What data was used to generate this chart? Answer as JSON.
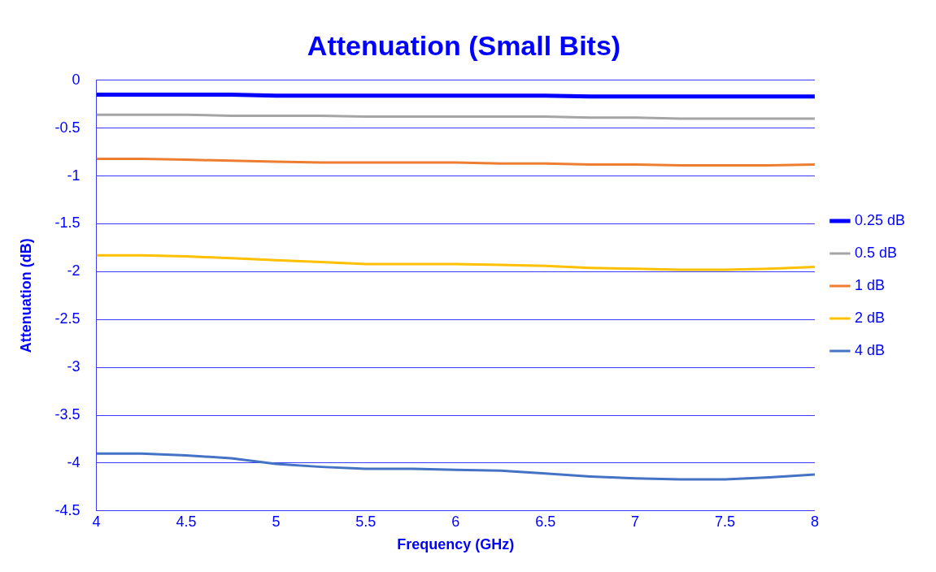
{
  "chart_data": {
    "type": "line",
    "title": "Attenuation (Small Bits)",
    "xlabel": "Frequency (GHz)",
    "ylabel": "Attenuation (dB)",
    "x": [
      4,
      4.25,
      4.5,
      4.75,
      5,
      5.25,
      5.5,
      5.75,
      6,
      6.25,
      6.5,
      6.75,
      7,
      7.25,
      7.5,
      7.75,
      8
    ],
    "series": [
      {
        "name": "0.25 dB",
        "color": "#0000ff",
        "values": [
          -0.15,
          -0.15,
          -0.15,
          -0.15,
          -0.16,
          -0.16,
          -0.16,
          -0.16,
          -0.16,
          -0.16,
          -0.16,
          -0.17,
          -0.17,
          -0.17,
          -0.17,
          -0.17,
          -0.17
        ]
      },
      {
        "name": "0.5 dB",
        "color": "#a5a5a5",
        "values": [
          -0.36,
          -0.36,
          -0.36,
          -0.37,
          -0.37,
          -0.37,
          -0.38,
          -0.38,
          -0.38,
          -0.38,
          -0.38,
          -0.39,
          -0.39,
          -0.4,
          -0.4,
          -0.4,
          -0.4
        ]
      },
      {
        "name": "1 dB",
        "color": "#ed7d31",
        "values": [
          -0.82,
          -0.82,
          -0.83,
          -0.84,
          -0.85,
          -0.86,
          -0.86,
          -0.86,
          -0.86,
          -0.87,
          -0.87,
          -0.88,
          -0.88,
          -0.89,
          -0.89,
          -0.89,
          -0.88
        ]
      },
      {
        "name": "2 dB",
        "color": "#ffc000",
        "values": [
          -1.83,
          -1.83,
          -1.84,
          -1.86,
          -1.88,
          -1.9,
          -1.92,
          -1.92,
          -1.92,
          -1.93,
          -1.94,
          -1.96,
          -1.97,
          -1.98,
          -1.98,
          -1.97,
          -1.95
        ]
      },
      {
        "name": "4 dB",
        "color": "#4472c4",
        "values": [
          -3.9,
          -3.9,
          -3.92,
          -3.95,
          -4.01,
          -4.04,
          -4.06,
          -4.06,
          -4.07,
          -4.08,
          -4.11,
          -4.14,
          -4.16,
          -4.17,
          -4.17,
          -4.15,
          -4.12
        ]
      }
    ],
    "xlim": [
      4,
      8
    ],
    "xticks": [
      4,
      4.5,
      5,
      5.5,
      6,
      6.5,
      7,
      7.5,
      8
    ],
    "ylim": [
      -4.5,
      0
    ],
    "yticks": [
      -4.5,
      -4,
      -3.5,
      -3,
      -2.5,
      -2,
      -1.5,
      -1,
      -0.5,
      0
    ],
    "grid": "y",
    "legend": "right",
    "marker": "none",
    "line_style": "solid"
  }
}
